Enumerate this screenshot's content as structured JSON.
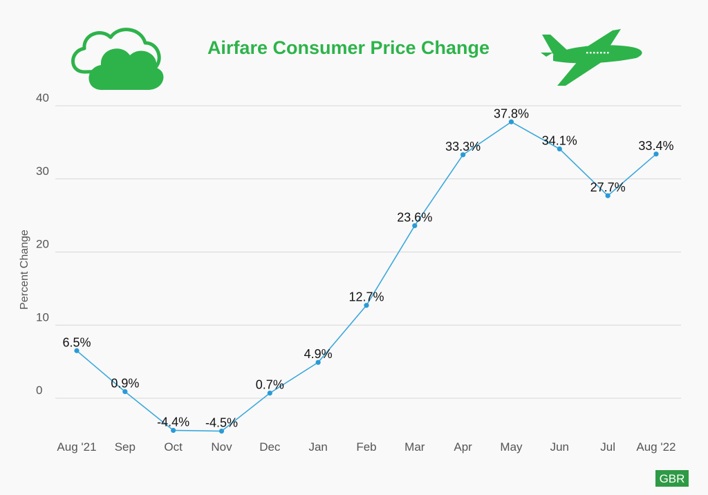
{
  "chart_data": {
    "type": "line",
    "title": "Airfare Consumer Price Change",
    "ylabel": "Percent Change",
    "xlabel": "",
    "categories": [
      "Aug '21",
      "Sep",
      "Oct",
      "Nov",
      "Dec",
      "Jan",
      "Feb",
      "Mar",
      "Apr",
      "May",
      "Jun",
      "Jul",
      "Aug '22"
    ],
    "values": [
      6.5,
      0.9,
      -4.4,
      -4.5,
      0.7,
      4.9,
      12.7,
      23.6,
      33.3,
      37.8,
      34.1,
      27.7,
      33.4
    ],
    "data_labels": [
      "6.5%",
      "0.9%",
      "-4.4%",
      "-4.5%",
      "0.7%",
      "4.9%",
      "12.7%",
      "23.6%",
      "33.3%",
      "37.8%",
      "34.1%",
      "27.7%",
      "33.4%"
    ],
    "yticks": [
      0,
      10,
      20,
      30,
      40
    ],
    "ylim": [
      -5,
      40
    ],
    "grid": true,
    "legend": "none",
    "line_color": "#3aa8dc",
    "title_color": "#2db34a"
  },
  "decor": {
    "left_icon": "cloud-icon",
    "right_icon": "airplane-icon",
    "badge": "GBR",
    "badge_color": "#2e9a45"
  }
}
